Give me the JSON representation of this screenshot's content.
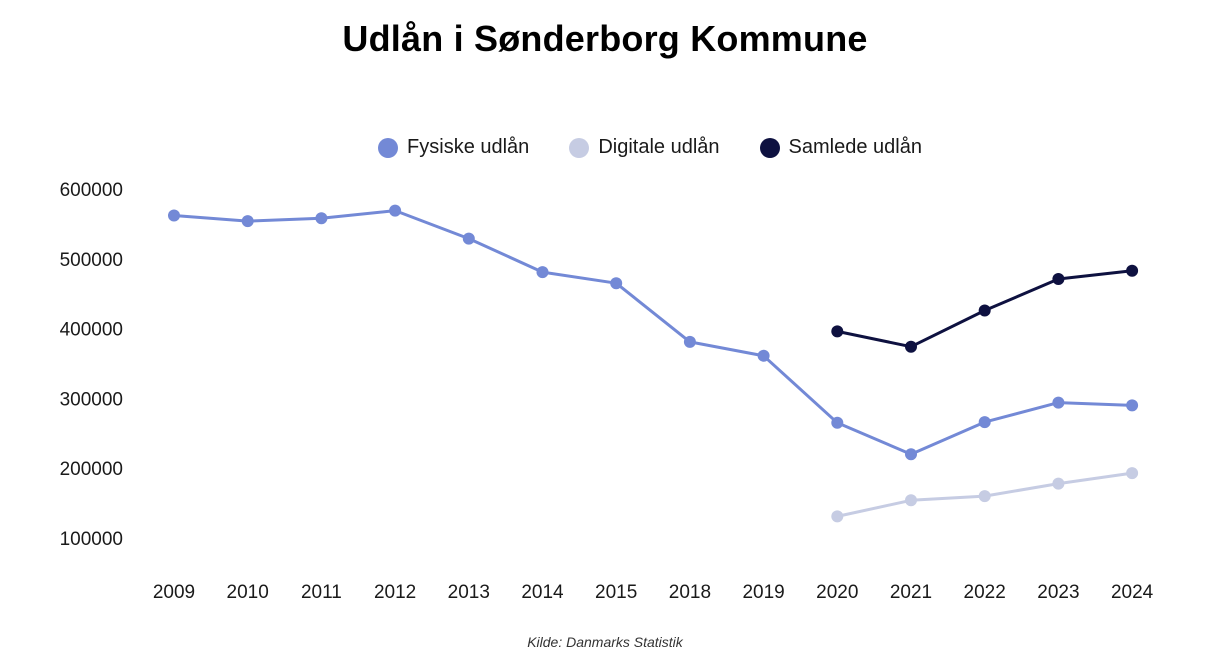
{
  "source": "Kilde: Danmarks Statistik",
  "chart_data": {
    "type": "line",
    "title": "Udlån i Sønderborg Kommune",
    "xlabel": "",
    "ylabel": "",
    "categories": [
      "2009",
      "2010",
      "2011",
      "2012",
      "2013",
      "2014",
      "2015",
      "2018",
      "2019",
      "2020",
      "2021",
      "2022",
      "2023",
      "2024"
    ],
    "y_ticks": [
      "600000",
      "500000",
      "400000",
      "300000",
      "200000",
      "100000"
    ],
    "ylim": [
      100000,
      600000
    ],
    "grid": false,
    "legend_position": "top",
    "series": [
      {
        "name": "Fysiske udlån",
        "color": "#7389d6",
        "values": [
          562000,
          554000,
          558000,
          569000,
          529000,
          481000,
          465000,
          381000,
          361000,
          265000,
          220000,
          266000,
          294000,
          290000
        ]
      },
      {
        "name": "Digitale udlån",
        "color": "#c6cce3",
        "values": [
          null,
          null,
          null,
          null,
          null,
          null,
          null,
          null,
          null,
          131000,
          154000,
          160000,
          178000,
          193000
        ]
      },
      {
        "name": "Samlede udlån",
        "color": "#0e1140",
        "values": [
          null,
          null,
          null,
          null,
          null,
          null,
          null,
          null,
          null,
          396000,
          374000,
          426000,
          471000,
          483000
        ]
      }
    ]
  }
}
